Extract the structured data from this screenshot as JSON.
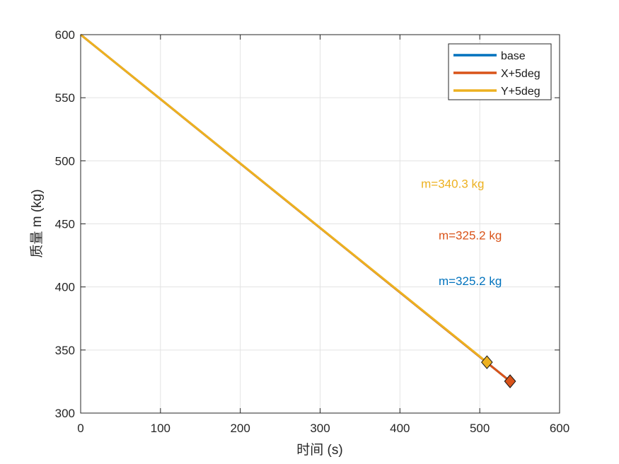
{
  "chart_data": {
    "type": "line",
    "title": "",
    "xlabel": "时间 (s)",
    "ylabel": "质量 m (kg)",
    "xlim": [
      0,
      600
    ],
    "ylim": [
      300,
      600
    ],
    "x_ticks": [
      "0",
      "100",
      "200",
      "300",
      "400",
      "500",
      "600"
    ],
    "y_ticks": [
      "300",
      "350",
      "400",
      "450",
      "500",
      "550",
      "600"
    ],
    "grid": true,
    "legend_position": "top-right",
    "series": [
      {
        "name": "base",
        "color": "#0072BD",
        "x": [
          0,
          538
        ],
        "y": [
          600,
          325.2
        ],
        "end_marker": {
          "x": 538,
          "y": 325.2,
          "shape": "diamond"
        }
      },
      {
        "name": "X+5deg",
        "color": "#D95319",
        "x": [
          0,
          538
        ],
        "y": [
          600,
          325.2
        ],
        "end_marker": {
          "x": 538,
          "y": 325.2,
          "shape": "diamond"
        }
      },
      {
        "name": "Y+5deg",
        "color": "#EDB120",
        "x": [
          0,
          509
        ],
        "y": [
          600,
          340.3
        ],
        "end_marker": {
          "x": 509,
          "y": 340.3,
          "shape": "diamond"
        }
      }
    ],
    "annotations": [
      {
        "text": "m=340.3 kg",
        "color": "#EDB120",
        "x": 466,
        "y": 482
      },
      {
        "text": "m=325.2 kg",
        "color": "#D95319",
        "x": 488,
        "y": 441
      },
      {
        "text": "m=325.2 kg",
        "color": "#0072BD",
        "x": 488,
        "y": 405
      }
    ]
  }
}
